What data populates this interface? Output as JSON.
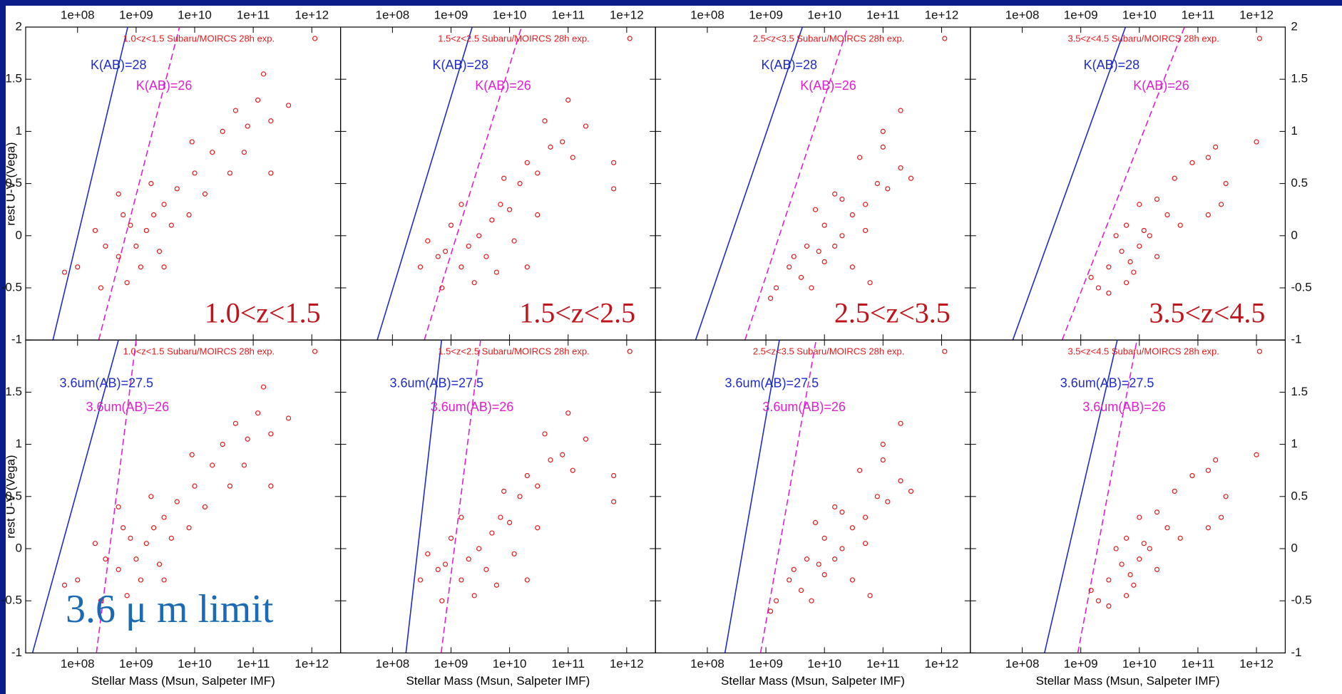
{
  "axes": {
    "xlabel": "Stellar Mass  (Msun, Salpeter IMF)",
    "ylabel": "rest U-V  (Vega)",
    "log_x": true,
    "xlim": [
      13000000.0,
      3100000000000.0
    ],
    "ylim": [
      -1,
      2
    ],
    "xticks": [
      {
        "value": 100000000.0,
        "label": "1e+08"
      },
      {
        "value": 1000000000.0,
        "label": "1e+09"
      },
      {
        "value": 10000000000.0,
        "label": "1e+10"
      },
      {
        "value": 100000000000.0,
        "label": "1e+11"
      },
      {
        "value": 1000000000000.0,
        "label": "1e+12"
      }
    ],
    "yticks": [
      -1,
      -0.5,
      0,
      0.5,
      1,
      1.5,
      2
    ]
  },
  "annotation": "3.6 μ m limit",
  "chart_data": [
    {
      "type": "scatter",
      "title": "1.0<z<1.5  Subaru/MOIRCS 28h exp.",
      "label": "1.0<z<1.5",
      "color": "#e31a1c",
      "x": [
        500000000.0,
        800000000.0,
        1000000000.0,
        1500000000.0,
        2000000000.0,
        1200000000.0,
        700000000.0,
        3000000000.0,
        5000000000.0,
        4000000000.0,
        2500000000.0,
        600000000.0,
        10000000000.0,
        20000000000.0,
        15000000000.0,
        30000000000.0,
        50000000000.0,
        80000000000.0,
        120000000000.0,
        200000000000.0,
        70000000000.0,
        40000000000.0,
        300000000.0,
        200000000.0,
        100000000.0,
        60000000.0,
        250000000.0,
        8000000000.0,
        200000000000.0,
        400000000000.0,
        150000000000.0,
        9000000000.0,
        500000000.0,
        1800000000.0,
        3000000000.0
      ],
      "y": [
        -0.2,
        0.1,
        -0.1,
        0.05,
        0.2,
        -0.3,
        -0.45,
        0.3,
        0.45,
        0.1,
        -0.15,
        0.2,
        0.6,
        0.8,
        0.4,
        1.0,
        1.2,
        1.05,
        1.3,
        1.1,
        0.8,
        0.6,
        -0.1,
        0.05,
        -0.3,
        -0.35,
        -0.5,
        0.2,
        0.6,
        1.25,
        1.55,
        0.9,
        0.4,
        0.5,
        -0.3
      ],
      "top_lines": [
        {
          "name": "K(AB)=28",
          "color": "#1f2ccc",
          "dash": false,
          "x": [
            38000000.0,
            720000000.0
          ],
          "y": [
            -1,
            2
          ]
        },
        {
          "name": "K(AB)=26",
          "color": "#e020d0",
          "dash": true,
          "x": [
            230000000.0,
            5500000000.0
          ],
          "y": [
            -1,
            2
          ]
        }
      ],
      "bottom_lines": [
        {
          "name": "3.6um(AB)=27.5",
          "color": "#1f2ccc",
          "dash": false,
          "x": [
            17000000.0,
            500000000.0
          ],
          "y": [
            -1,
            2
          ]
        },
        {
          "name": "3.6um(AB)=26",
          "color": "#e020d0",
          "dash": true,
          "x": [
            210000000.0,
            1000000000.0
          ],
          "y": [
            -1,
            2
          ]
        }
      ]
    },
    {
      "type": "scatter",
      "title": "1.5<z<2.5  Subaru/MOIRCS 28h exp.",
      "label": "1.5<z<2.5",
      "color": "#e31a1c",
      "x": [
        800000000.0,
        1500000000.0,
        2000000000.0,
        3000000000.0,
        4000000000.0,
        5000000000.0,
        7000000000.0,
        10000000000.0,
        15000000000.0,
        20000000000.0,
        30000000000.0,
        50000000000.0,
        80000000000.0,
        120000000000.0,
        200000000000.0,
        600000000000.0,
        600000000000.0,
        1000000000.0,
        600000000.0,
        400000000.0,
        300000000.0,
        2500000000.0,
        6000000000.0,
        12000000000.0,
        30000000000.0,
        40000000000.0,
        100000000000.0,
        8000000000.0,
        1500000000.0,
        700000000.0,
        20000000000.0
      ],
      "y": [
        -0.15,
        -0.3,
        -0.1,
        0.0,
        -0.2,
        0.15,
        0.3,
        0.25,
        0.5,
        0.7,
        0.6,
        0.85,
        0.9,
        0.75,
        1.05,
        0.7,
        0.45,
        0.1,
        -0.2,
        -0.05,
        -0.3,
        -0.45,
        -0.35,
        -0.05,
        0.2,
        1.1,
        1.3,
        0.55,
        0.3,
        -0.5,
        -0.3
      ],
      "top_lines": [
        {
          "name": "K(AB)=28",
          "color": "#1f2ccc",
          "dash": false,
          "x": [
            55000000.0,
            2300000000.0
          ],
          "y": [
            -1,
            2
          ]
        },
        {
          "name": "K(AB)=26",
          "color": "#e020d0",
          "dash": true,
          "x": [
            350000000.0,
            16000000000.0
          ],
          "y": [
            -1,
            2
          ]
        }
      ],
      "bottom_lines": [
        {
          "name": "3.6um(AB)=27.5",
          "color": "#1f2ccc",
          "dash": false,
          "x": [
            170000000.0,
            690000000.0
          ],
          "y": [
            -1,
            2
          ]
        },
        {
          "name": "3.6um(AB)=26",
          "color": "#e020d0",
          "dash": true,
          "x": [
            680000000.0,
            3200000000.0
          ],
          "y": [
            -1,
            2
          ]
        }
      ]
    },
    {
      "type": "scatter",
      "title": "2.5<z<3.5  Subaru/MOIRCS 28h exp.",
      "label": "2.5<z<3.5",
      "color": "#e31a1c",
      "x": [
        3000000000.0,
        5000000000.0,
        8000000000.0,
        10000000000.0,
        15000000000.0,
        20000000000.0,
        4000000000.0,
        6000000000.0,
        2500000000.0,
        1500000000.0,
        1200000000.0,
        30000000000.0,
        50000000000.0,
        80000000000.0,
        120000000000.0,
        200000000000.0,
        100000000000.0,
        200000000000.0,
        300000000000.0,
        40000000000.0,
        20000000000.0,
        10000000000.0,
        7000000000.0,
        15000000000.0,
        30000000000.0,
        60000000000.0,
        100000000000.0,
        50000000000.0
      ],
      "y": [
        -0.2,
        -0.1,
        -0.15,
        -0.25,
        -0.1,
        0.0,
        -0.4,
        -0.5,
        -0.3,
        -0.5,
        -0.6,
        0.2,
        0.3,
        0.5,
        0.45,
        0.65,
        1.0,
        1.2,
        0.55,
        0.75,
        0.35,
        0.1,
        0.25,
        0.4,
        -0.3,
        -0.45,
        0.85,
        0.05
      ],
      "top_lines": [
        {
          "name": "K(AB)=28",
          "color": "#1f2ccc",
          "dash": false,
          "x": [
            63000000.0,
            4200000000.0
          ],
          "y": [
            -1,
            2
          ]
        },
        {
          "name": "K(AB)=26",
          "color": "#e020d0",
          "dash": true,
          "x": [
            440000000.0,
            25000000000.0
          ],
          "y": [
            -1,
            2
          ]
        }
      ],
      "bottom_lines": [
        {
          "name": "3.6um(AB)=27.5",
          "color": "#1f2ccc",
          "dash": false,
          "x": [
            200000000.0,
            1700000000.0
          ],
          "y": [
            -1,
            2
          ]
        },
        {
          "name": "3.6um(AB)=26",
          "color": "#e020d0",
          "dash": true,
          "x": [
            810000000.0,
            7200000000.0
          ],
          "y": [
            -1,
            2
          ]
        }
      ]
    },
    {
      "type": "scatter",
      "title": "3.5<z<4.5  Subaru/MOIRCS 28h exp.",
      "label": "3.5<z<4.5",
      "color": "#e31a1c",
      "x": [
        3000000000.0,
        5000000000.0,
        7000000000.0,
        10000000000.0,
        15000000000.0,
        20000000000.0,
        4000000000.0,
        6000000000.0,
        8000000000.0,
        12000000000.0,
        3000000000.0,
        2000000000.0,
        1500000000.0,
        30000000000.0,
        50000000000.0,
        20000000000.0,
        40000000000.0,
        80000000000.0,
        150000000000.0,
        200000000000.0,
        300000000000.0,
        1000000000000.0,
        250000000000.0,
        150000000000.0,
        10000000000.0,
        6000000000.0
      ],
      "y": [
        -0.3,
        -0.15,
        -0.25,
        -0.1,
        0.0,
        -0.2,
        0.0,
        -0.45,
        -0.35,
        0.05,
        -0.55,
        -0.5,
        -0.4,
        0.2,
        0.1,
        0.35,
        0.55,
        0.7,
        0.75,
        0.85,
        0.5,
        0.9,
        0.3,
        0.2,
        0.3,
        0.1
      ],
      "top_lines": [
        {
          "name": "K(AB)=28",
          "color": "#1f2ccc",
          "dash": false,
          "x": [
            69000000.0,
            5800000000.0
          ],
          "y": [
            -1,
            2
          ]
        },
        {
          "name": "K(AB)=26",
          "color": "#e020d0",
          "dash": true,
          "x": [
            480000000.0,
            59000000000.0
          ],
          "y": [
            -1,
            2
          ]
        }
      ],
      "bottom_lines": [
        {
          "name": "3.6um(AB)=27.5",
          "color": "#1f2ccc",
          "dash": false,
          "x": [
            240000000.0,
            4200000000.0
          ],
          "y": [
            -1,
            2
          ]
        },
        {
          "name": "3.6um(AB)=26",
          "color": "#e020d0",
          "dash": true,
          "x": [
            890000000.0,
            9100000000.0
          ],
          "y": [
            -1,
            2
          ]
        }
      ]
    }
  ]
}
